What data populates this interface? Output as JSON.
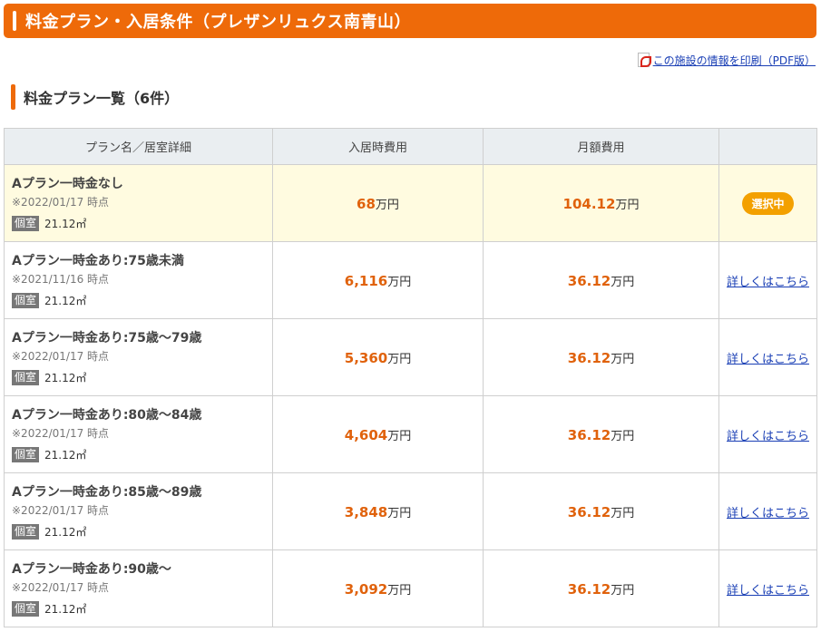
{
  "header": {
    "title": "料金プラン・入居条件（プレザンリュクス南青山）"
  },
  "print": {
    "label": "この施設の情報を印刷（PDF版）",
    "icon": "pdf-icon"
  },
  "section": {
    "title": "料金プラン一覧（6件）"
  },
  "table": {
    "headers": [
      "プラン名／居室詳細",
      "入居時費用",
      "月額費用",
      ""
    ],
    "unit": "万円",
    "room_type": "個室",
    "rows": [
      {
        "name": "Aプラン一時金なし",
        "date": "※2022/01/17 時点",
        "area": "21.12㎡",
        "move_in": "68",
        "monthly": "104.12",
        "action": "選択中",
        "selected": true
      },
      {
        "name": "Aプラン一時金あり:75歳未満",
        "date": "※2021/11/16 時点",
        "area": "21.12㎡",
        "move_in": "6,116",
        "monthly": "36.12",
        "action": "詳しくはこちら",
        "selected": false
      },
      {
        "name": "Aプラン一時金あり:75歳〜79歳",
        "date": "※2022/01/17 時点",
        "area": "21.12㎡",
        "move_in": "5,360",
        "monthly": "36.12",
        "action": "詳しくはこちら",
        "selected": false
      },
      {
        "name": "Aプラン一時金あり:80歳〜84歳",
        "date": "※2022/01/17 時点",
        "area": "21.12㎡",
        "move_in": "4,604",
        "monthly": "36.12",
        "action": "詳しくはこちら",
        "selected": false
      },
      {
        "name": "Aプラン一時金あり:85歳〜89歳",
        "date": "※2022/01/17 時点",
        "area": "21.12㎡",
        "move_in": "3,848",
        "monthly": "36.12",
        "action": "詳しくはこちら",
        "selected": false
      },
      {
        "name": "Aプラン一時金あり:90歳〜",
        "date": "※2022/01/17 時点",
        "area": "21.12㎡",
        "move_in": "3,092",
        "monthly": "36.12",
        "action": "詳しくはこちら",
        "selected": false
      }
    ]
  },
  "colors": {
    "accent": "#ee6a09",
    "price": "#e0620c",
    "badge": "#f3a000",
    "link": "#1a3fb5",
    "selected_row": "#fffbe0"
  }
}
